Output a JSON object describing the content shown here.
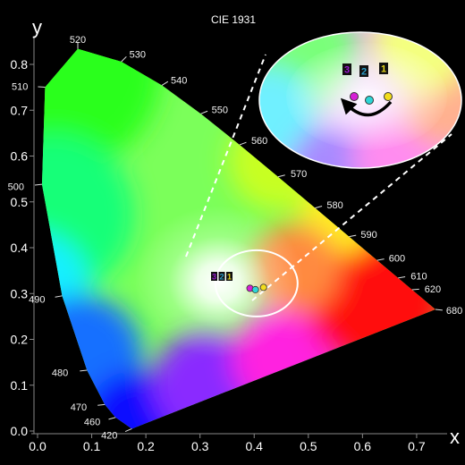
{
  "chart_data": {
    "type": "scatter",
    "title": "CIE 1931",
    "xlabel": "x",
    "ylabel": "y",
    "xlim": [
      0.0,
      0.75
    ],
    "ylim": [
      0.0,
      0.85
    ],
    "x_ticks": [
      "0.0",
      "0.1",
      "0.2",
      "0.3",
      "0.4",
      "0.5",
      "0.6",
      "0.7"
    ],
    "y_ticks": [
      "0.0",
      "0.1",
      "0.2",
      "0.3",
      "0.4",
      "0.5",
      "0.6",
      "0.7",
      "0.8"
    ],
    "x_tick_values": [
      0.0,
      0.1,
      0.2,
      0.3,
      0.4,
      0.5,
      0.6,
      0.7
    ],
    "y_tick_values": [
      0.0,
      0.1,
      0.2,
      0.3,
      0.4,
      0.5,
      0.6,
      0.7,
      0.8
    ],
    "grid": false,
    "spectral_locus": [
      {
        "label": "420",
        "x": 0.1741,
        "y": 0.005
      },
      {
        "label": "460",
        "x": 0.144,
        "y": 0.0297
      },
      {
        "label": "470",
        "x": 0.1241,
        "y": 0.0578
      },
      {
        "label": "480",
        "x": 0.0913,
        "y": 0.1327
      },
      {
        "label": "490",
        "x": 0.0454,
        "y": 0.295
      },
      {
        "label": "500",
        "x": 0.0082,
        "y": 0.5384
      },
      {
        "label": "510",
        "x": 0.0139,
        "y": 0.7502
      },
      {
        "label": "520",
        "x": 0.0743,
        "y": 0.8338
      },
      {
        "label": "530",
        "x": 0.1547,
        "y": 0.8059
      },
      {
        "label": "540",
        "x": 0.2296,
        "y": 0.7543
      },
      {
        "label": "550",
        "x": 0.3016,
        "y": 0.6923
      },
      {
        "label": "560",
        "x": 0.3731,
        "y": 0.6245
      },
      {
        "label": "570",
        "x": 0.4441,
        "y": 0.5547
      },
      {
        "label": "580",
        "x": 0.5125,
        "y": 0.4866
      },
      {
        "label": "590",
        "x": 0.5752,
        "y": 0.4242
      },
      {
        "label": "600",
        "x": 0.627,
        "y": 0.3725
      },
      {
        "label": "610",
        "x": 0.6658,
        "y": 0.334
      },
      {
        "label": "620",
        "x": 0.6915,
        "y": 0.3083
      },
      {
        "label": "680",
        "x": 0.7347,
        "y": 0.2653
      }
    ],
    "points": [
      {
        "label": "3",
        "x": 0.313,
        "y": 0.329,
        "color": "#d620d6",
        "tag_color": "#9a1bd4"
      },
      {
        "label": "2",
        "x": 0.323,
        "y": 0.326,
        "color": "#2cd6d6",
        "tag_color": "#2a9cc8"
      },
      {
        "label": "1",
        "x": 0.338,
        "y": 0.331,
        "color": "#f2dc1c",
        "tag_color": "#e8d81c"
      }
    ],
    "zoom_region": {
      "cx": 0.325,
      "cy": 0.33
    }
  }
}
